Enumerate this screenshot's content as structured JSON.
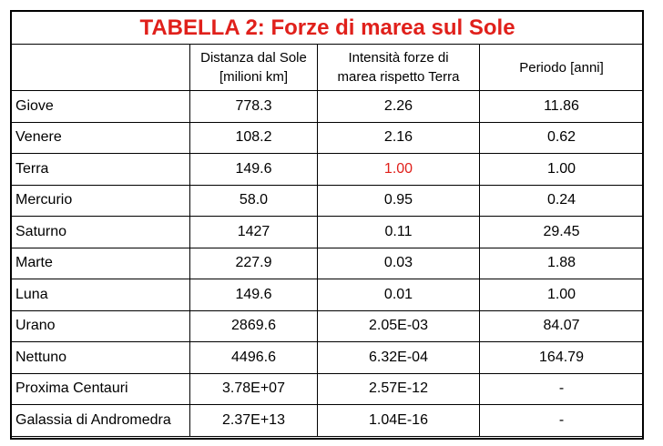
{
  "title": "TABELLA 2: Forze di marea sul Sole",
  "colors": {
    "title": "#e0201b",
    "highlight": "#e0201b",
    "border": "#000000"
  },
  "headers": {
    "name": "",
    "distance_line1": "Distanza dal Sole",
    "distance_line2": "[milioni km]",
    "intensity_line1": "Intensità forze di",
    "intensity_line2": "marea rispetto Terra",
    "period": "Periodo [anni]"
  },
  "rows": [
    {
      "name": "Giove",
      "distance": "778.3",
      "intensity": "2.26",
      "period": "11.86"
    },
    {
      "name": "Venere",
      "distance": "108.2",
      "intensity": "2.16",
      "period": "0.62"
    },
    {
      "name": "Terra",
      "distance": "149.6",
      "intensity": "1.00",
      "period": "1.00"
    },
    {
      "name": "Mercurio",
      "distance": "58.0",
      "intensity": "0.95",
      "period": "0.24"
    },
    {
      "name": "Saturno",
      "distance": "1427",
      "intensity": "0.11",
      "period": "29.45"
    },
    {
      "name": "Marte",
      "distance": "227.9",
      "intensity": "0.03",
      "period": "1.88"
    },
    {
      "name": "Luna",
      "distance": "149.6",
      "intensity": "0.01",
      "period": "1.00"
    },
    {
      "name": "Urano",
      "distance": "2869.6",
      "intensity": "2.05E-03",
      "period": "84.07"
    },
    {
      "name": "Nettuno",
      "distance": "4496.6",
      "intensity": "6.32E-04",
      "period": "164.79"
    },
    {
      "name": "Proxima Centauri",
      "distance": "3.78E+07",
      "intensity": "2.57E-12",
      "period": "-"
    },
    {
      "name": "Galassia di Andromedra",
      "distance": "2.37E+13",
      "intensity": "1.04E-16",
      "period": "-"
    }
  ]
}
